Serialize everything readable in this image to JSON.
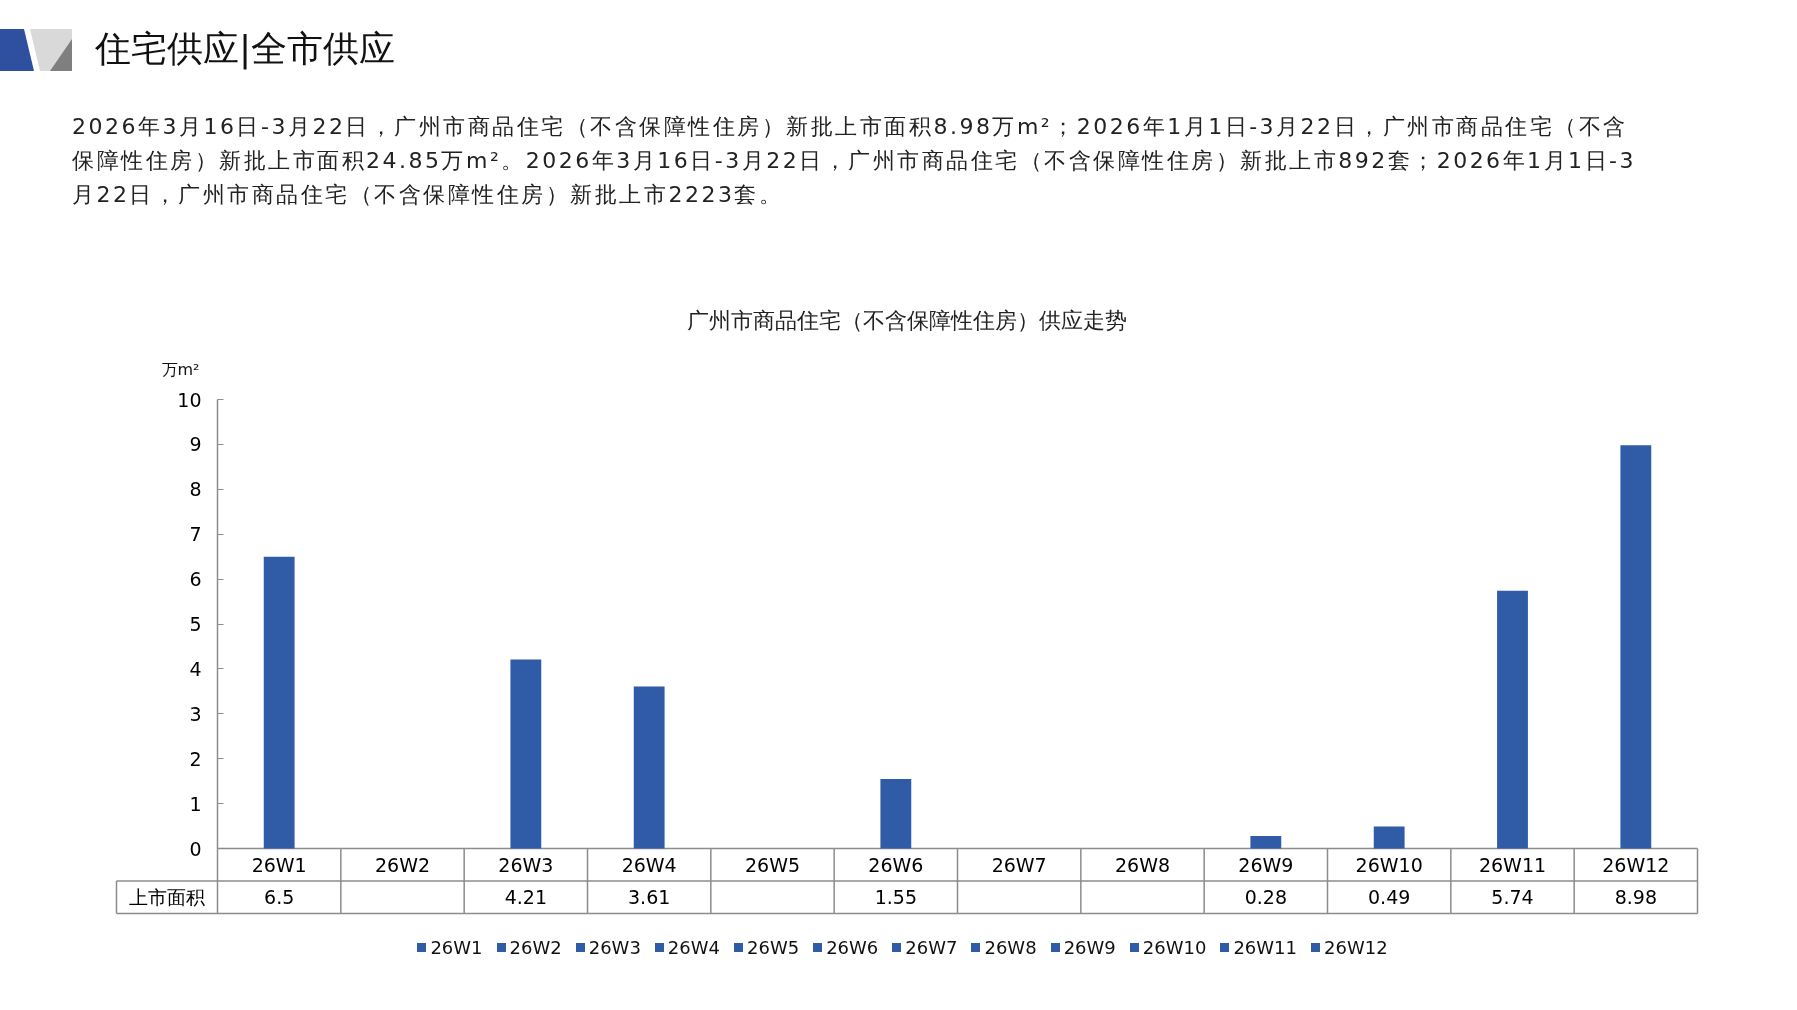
{
  "chart_data": {
    "type": "bar",
    "title": "广州市商品住宅（不含保障性住房）供应走势",
    "ylabel": "万m²",
    "annotations": [
      "住宅供应|全市供应",
      "2026年3月16日-3月22日，广州市商品住宅（不含保障性住房）新批上市面积8.98万m²；2026年1月1日-3月22日，广州市商品住宅（不含保障性住房）新批上市面积24.85万m²。2026年3月16日-3月22日，广州市商品住宅（不含保障性住房）新批上市892套；2026年1月1日-3月22日，广州市商品住宅（不含保障性住房）新批上市2223套。"
    ],
    "categories": [
      "26W1",
      "26W2",
      "26W3",
      "26W4",
      "26W5",
      "26W6",
      "26W7",
      "26W8",
      "26W9",
      "26W10",
      "26W11",
      "26W12"
    ],
    "series": [
      {
        "name": "上市面积",
        "values": [
          6.5,
          null,
          4.21,
          3.61,
          null,
          1.55,
          null,
          null,
          0.28,
          0.49,
          5.74,
          8.98
        ]
      }
    ],
    "colors": [
      "#2f5ba7",
      "#2f5ba7",
      "#2f5ba7",
      "#2f5ba7",
      "#2f5ba7",
      "#2f5ba7",
      "#2f5ba7",
      "#2f5ba7",
      "#2f5ba7",
      "#2f5ba7",
      "#2f5ba7",
      "#2f5ba7"
    ],
    "ylim": [
      0,
      10
    ],
    "yticks": [
      0,
      1,
      2,
      3,
      4,
      5,
      6,
      7,
      8,
      9,
      10
    ],
    "legend": "bottom",
    "data_labels": true
  }
}
